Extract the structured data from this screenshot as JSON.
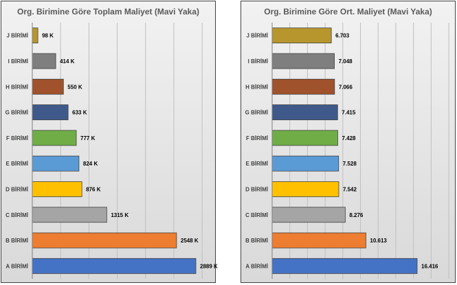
{
  "chart_data": [
    {
      "type": "bar",
      "orientation": "horizontal",
      "title": "Org. Birimine Göre Toplam Maliyet (Mavi Yaka)",
      "categories": [
        "J BİRİMİ",
        "I BİRİMİ",
        "H BİRİMİ",
        "G BİRİMİ",
        "F BİRİMİ",
        "E BİRİMİ",
        "D BİRİMİ",
        "C BİRİMİ",
        "B BİRİMİ",
        "A BİRİMİ"
      ],
      "values": [
        98,
        414,
        550,
        633,
        777,
        824,
        876,
        1315,
        2548,
        2889
      ],
      "data_labels": [
        "98 K",
        "414 K",
        "550 K",
        "633 K",
        "777 K",
        "824 K",
        "876 K",
        "1315 K",
        "2548 K",
        "2889 K"
      ],
      "colors": [
        "#b8962e",
        "#7f7f7f",
        "#a0522d",
        "#3f5a8a",
        "#70ad47",
        "#5b9bd5",
        "#ffc000",
        "#a5a5a5",
        "#ed7d31",
        "#4472c4"
      ],
      "xlim": [
        0,
        3500
      ],
      "grid": true
    },
    {
      "type": "bar",
      "orientation": "horizontal",
      "title": "Org. Birimine Göre Ort. Maliyet (Mavi Yaka)",
      "categories": [
        "J BİRİMİ",
        "I BİRİMİ",
        "H BİRİMİ",
        "G BİRİMİ",
        "F BİRİMİ",
        "E BİRİMİ",
        "D BİRİMİ",
        "C BİRİMİ",
        "B BİRİMİ",
        "A BİRİMİ"
      ],
      "values": [
        6.703,
        7.048,
        7.066,
        7.415,
        7.428,
        7.528,
        7.542,
        8.276,
        10.613,
        16.416
      ],
      "data_labels": [
        "6.703",
        "7.048",
        "7.066",
        "7.415",
        "7.428",
        "7.528",
        "7.542",
        "8.276",
        "10.613",
        "16.416"
      ],
      "colors": [
        "#b8962e",
        "#7f7f7f",
        "#a0522d",
        "#3f5a8a",
        "#70ad47",
        "#5b9bd5",
        "#ffc000",
        "#a5a5a5",
        "#ed7d31",
        "#4472c4"
      ],
      "xlim": [
        0,
        20
      ],
      "grid": true
    }
  ]
}
